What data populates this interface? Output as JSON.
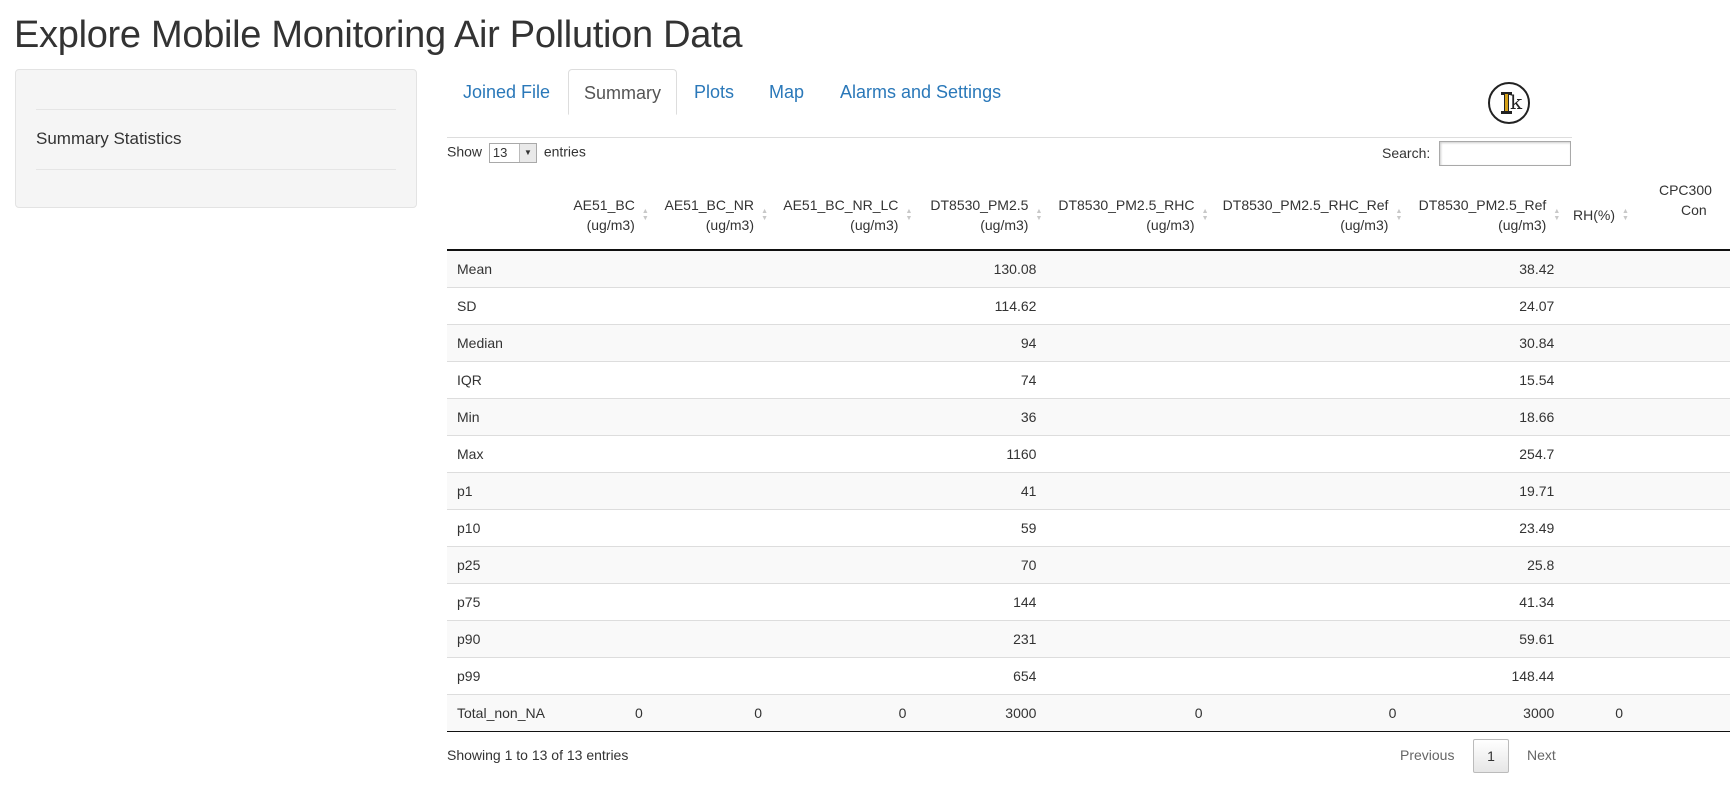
{
  "page": {
    "title": "Explore Mobile Monitoring Air Pollution Data"
  },
  "sidebar": {
    "label": "Summary Statistics"
  },
  "tabs": [
    {
      "label": "Joined File",
      "active": false
    },
    {
      "label": "Summary",
      "active": true
    },
    {
      "label": "Plots",
      "active": false
    },
    {
      "label": "Map",
      "active": false
    },
    {
      "label": "Alarms and Settings",
      "active": false
    }
  ],
  "table_controls": {
    "show_label": "Show",
    "entries_value": "13",
    "entries_label": "entries",
    "search_label": "Search:",
    "search_value": ""
  },
  "table": {
    "columns": [
      {
        "line1": "",
        "line2": ""
      },
      {
        "line1": "AE51_BC",
        "line2": "(ug/m3)"
      },
      {
        "line1": "AE51_BC_NR",
        "line2": "(ug/m3)"
      },
      {
        "line1": "AE51_BC_NR_LC",
        "line2": "(ug/m3)"
      },
      {
        "line1": "DT8530_PM2.5",
        "line2": "(ug/m3)"
      },
      {
        "line1": "DT8530_PM2.5_RHC",
        "line2": "(ug/m3)"
      },
      {
        "line1": "DT8530_PM2.5_RHC_Ref",
        "line2": "(ug/m3)"
      },
      {
        "line1": "DT8530_PM2.5_Ref",
        "line2": "(ug/m3)"
      },
      {
        "line1": "RH(%)",
        "line2": ""
      },
      {
        "line1": "CPC300",
        "line2": "Con"
      }
    ],
    "rows": [
      {
        "label": "Mean",
        "cells": [
          "",
          "",
          "",
          "130.08",
          "",
          "",
          "38.42",
          "",
          ""
        ]
      },
      {
        "label": "SD",
        "cells": [
          "",
          "",
          "",
          "114.62",
          "",
          "",
          "24.07",
          "",
          ""
        ]
      },
      {
        "label": "Median",
        "cells": [
          "",
          "",
          "",
          "94",
          "",
          "",
          "30.84",
          "",
          ""
        ]
      },
      {
        "label": "IQR",
        "cells": [
          "",
          "",
          "",
          "74",
          "",
          "",
          "15.54",
          "",
          ""
        ]
      },
      {
        "label": "Min",
        "cells": [
          "",
          "",
          "",
          "36",
          "",
          "",
          "18.66",
          "",
          ""
        ]
      },
      {
        "label": "Max",
        "cells": [
          "",
          "",
          "",
          "1160",
          "",
          "",
          "254.7",
          "",
          ""
        ]
      },
      {
        "label": "p1",
        "cells": [
          "",
          "",
          "",
          "41",
          "",
          "",
          "19.71",
          "",
          ""
        ]
      },
      {
        "label": "p10",
        "cells": [
          "",
          "",
          "",
          "59",
          "",
          "",
          "23.49",
          "",
          ""
        ]
      },
      {
        "label": "p25",
        "cells": [
          "",
          "",
          "",
          "70",
          "",
          "",
          "25.8",
          "",
          ""
        ]
      },
      {
        "label": "p75",
        "cells": [
          "",
          "",
          "",
          "144",
          "",
          "",
          "41.34",
          "",
          ""
        ]
      },
      {
        "label": "p90",
        "cells": [
          "",
          "",
          "",
          "231",
          "",
          "",
          "59.61",
          "",
          ""
        ]
      },
      {
        "label": "p99",
        "cells": [
          "",
          "",
          "",
          "654",
          "",
          "",
          "148.44",
          "",
          ""
        ]
      },
      {
        "label": "Total_non_NA",
        "cells": [
          "0",
          "0",
          "0",
          "3000",
          "0",
          "0",
          "3000",
          "0",
          ""
        ]
      }
    ]
  },
  "footer": {
    "info": "Showing 1 to 13 of 13 entries",
    "previous": "Previous",
    "page": "1",
    "next": "Next"
  },
  "icons": {
    "logo": "ik-logo-icon",
    "sort": "sort-both-icon",
    "dropdown": "chevron-down-icon"
  }
}
